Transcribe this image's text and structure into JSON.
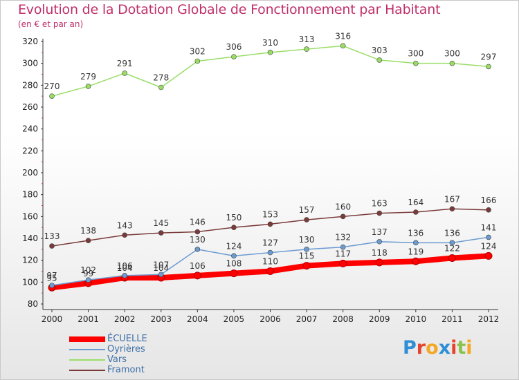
{
  "title": "Evolution de la Dotation Globale de Fonctionnement par Habitant",
  "subtitle": "(en € et par an)",
  "logo": {
    "letters": [
      {
        "ch": "P",
        "color": "#2e8fd6"
      },
      {
        "ch": "r",
        "color": "#e7432c"
      },
      {
        "ch": "o",
        "color": "#f5a623"
      },
      {
        "ch": "x",
        "color": "#2e8fd6"
      },
      {
        "ch": "i",
        "color": "#e7432c"
      },
      {
        "ch": "t",
        "color": "#8bc34a"
      },
      {
        "ch": "i",
        "color": "#f5a623"
      }
    ]
  },
  "chart_data": {
    "type": "line",
    "title": "Evolution de la Dotation Globale de Fonctionnement par Habitant",
    "subtitle": "(en € et par an)",
    "x": [
      "2000",
      "2001",
      "2002",
      "2003",
      "2004",
      "2005",
      "2006",
      "2007",
      "2008",
      "2009",
      "2010",
      "2011",
      "2012"
    ],
    "ylim": [
      80,
      320
    ],
    "yticks": [
      "80",
      "100",
      "120",
      "140",
      "160",
      "180",
      "200",
      "220",
      "240",
      "260",
      "280",
      "300",
      "320"
    ],
    "grid": false,
    "legend_position": "bottom-left",
    "series": [
      {
        "name": "ÉCUELLE",
        "color": "#ff0000",
        "values": [
          95,
          99,
          104,
          104,
          106,
          108,
          110,
          115,
          117,
          118,
          119,
          122,
          124
        ],
        "labels": [
          "95",
          "99",
          "104",
          "104",
          "106",
          "108",
          "110",
          "115",
          "117",
          "118",
          "119",
          "122",
          "124"
        ]
      },
      {
        "name": "Oyrières",
        "color": "#6b9bd1",
        "values": [
          97,
          102,
          106,
          107,
          130,
          124,
          127,
          130,
          132,
          137,
          136,
          136,
          141
        ],
        "labels": [
          "97",
          "102",
          "106",
          "107",
          "130",
          "124",
          "127",
          "130",
          "132",
          "137",
          "136",
          "136",
          "141"
        ]
      },
      {
        "name": "Vars",
        "color": "#99dd66",
        "values": [
          270,
          279,
          291,
          278,
          302,
          306,
          310,
          313,
          316,
          303,
          300,
          300,
          297
        ],
        "labels": [
          "270",
          "279",
          "291",
          "278",
          "302",
          "306",
          "310",
          "313",
          "316",
          "303",
          "300",
          "300",
          "297"
        ]
      },
      {
        "name": "Framont",
        "color": "#7a3a3a",
        "values": [
          133,
          138,
          143,
          145,
          146,
          150,
          153,
          157,
          160,
          163,
          164,
          167,
          166
        ],
        "labels": [
          "133",
          "138",
          "143",
          "145",
          "146",
          "150",
          "153",
          "157",
          "160",
          "163",
          "164",
          "167",
          "166"
        ]
      }
    ]
  }
}
